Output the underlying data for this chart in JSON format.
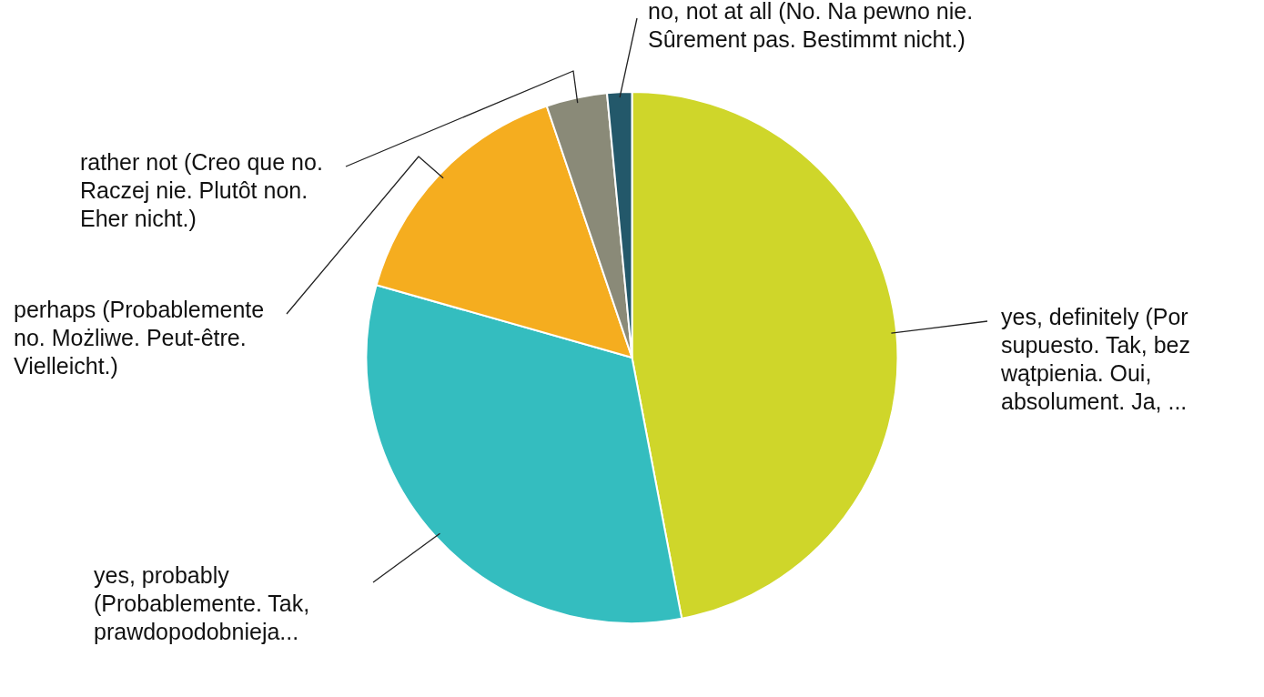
{
  "chart_data": {
    "type": "pie",
    "categories": [
      "yes, definitely (Por supuesto. Tak, bez wątpienia. Oui, absolument. Ja, ...",
      "yes, probably (Probablemente. Tak, prawdopodobnieja...",
      "perhaps (Probablemente no. Możliwe. Peut-être. Vielleicht.)",
      "rather not (Creo que no. Raczej nie. Plutôt non. Eher nicht.)",
      "no, not at all (No. Na pewno nie. Sûrement pas. Bestimmt nicht.)"
    ],
    "values": [
      47,
      32.4,
      15.4,
      3.7,
      1.5
    ],
    "colors": [
      "#cfd62a",
      "#34bdbf",
      "#f5ad1f",
      "#8a8a78",
      "#23586a"
    ],
    "legend": false
  }
}
